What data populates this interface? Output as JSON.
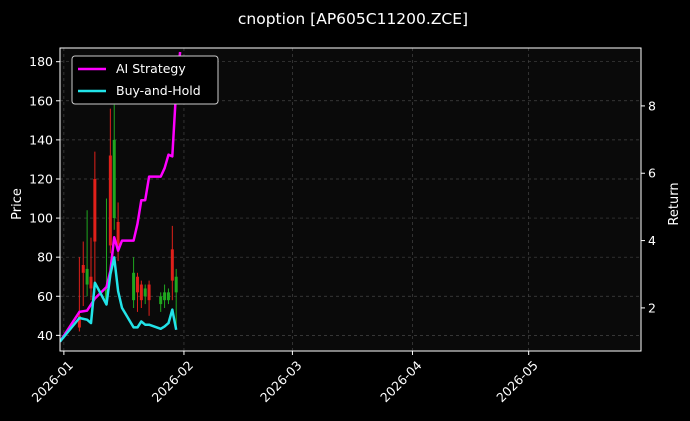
{
  "chart_data": {
    "type": "line",
    "title": "cnoption [AP605C11200.ZCE]",
    "ylabel_left": "Price",
    "ylabel_right": "Return",
    "x_range": [
      "2025-12-31",
      "2026-05-30"
    ],
    "x_ticks": [
      {
        "date": "2026-01-01",
        "label": "2026-01"
      },
      {
        "date": "2026-02-01",
        "label": "2026-02"
      },
      {
        "date": "2026-03-01",
        "label": "2026-03"
      },
      {
        "date": "2026-04-01",
        "label": "2026-04"
      },
      {
        "date": "2026-05-01",
        "label": "2026-05"
      }
    ],
    "left_ylim": [
      32,
      187
    ],
    "left_yticks": [
      40,
      60,
      80,
      100,
      120,
      140,
      160,
      180
    ],
    "right_ylim": [
      0.72,
      9.72
    ],
    "right_yticks": [
      2,
      4,
      6,
      8
    ],
    "grid": true,
    "legend_position": "top-left",
    "colors": {
      "background": "#000000",
      "plot_background": "#0a0a0a",
      "grid": "#444444",
      "up": "#1fa81f",
      "down": "#e0201a",
      "ai_strategy": "#ff00ff",
      "buy_and_hold": "#22e3e8"
    },
    "candles": [
      {
        "date": "2026-01-05",
        "open": 50,
        "close": 44,
        "high": 80,
        "low": 42
      },
      {
        "date": "2026-01-06",
        "open": 76,
        "close": 72,
        "high": 88,
        "low": 55
      },
      {
        "date": "2026-01-07",
        "open": 66,
        "close": 74,
        "high": 104,
        "low": 60
      },
      {
        "date": "2026-01-08",
        "open": 70,
        "close": 64,
        "high": 90,
        "low": 58
      },
      {
        "date": "2026-01-09",
        "open": 120,
        "close": 88,
        "high": 134,
        "low": 62
      },
      {
        "date": "2026-01-12",
        "open": 58,
        "close": 64,
        "high": 110,
        "low": 56
      },
      {
        "date": "2026-01-13",
        "open": 132,
        "close": 86,
        "high": 156,
        "low": 82
      },
      {
        "date": "2026-01-14",
        "open": 100,
        "close": 140,
        "high": 158,
        "low": 94
      },
      {
        "date": "2026-01-15",
        "open": 98,
        "close": 86,
        "high": 108,
        "low": 78
      },
      {
        "date": "2026-01-19",
        "open": 58,
        "close": 72,
        "high": 80,
        "low": 54
      },
      {
        "date": "2026-01-20",
        "open": 70,
        "close": 62,
        "high": 72,
        "low": 52
      },
      {
        "date": "2026-01-21",
        "open": 66,
        "close": 58,
        "high": 68,
        "low": 54
      },
      {
        "date": "2026-01-22",
        "open": 60,
        "close": 64,
        "high": 66,
        "low": 56
      },
      {
        "date": "2026-01-23",
        "open": 66,
        "close": 58,
        "high": 68,
        "low": 50
      },
      {
        "date": "2026-01-26",
        "open": 56,
        "close": 60,
        "high": 62,
        "low": 52
      },
      {
        "date": "2026-01-27",
        "open": 58,
        "close": 62,
        "high": 66,
        "low": 54
      },
      {
        "date": "2026-01-28",
        "open": 58,
        "close": 62,
        "high": 64,
        "low": 56
      },
      {
        "date": "2026-01-29",
        "open": 84,
        "close": 68,
        "high": 96,
        "low": 58
      },
      {
        "date": "2026-01-30",
        "open": 62,
        "close": 70,
        "high": 74,
        "low": 44
      }
    ],
    "series": [
      {
        "name": "AI Strategy",
        "color": "#ff00ff",
        "axis": "right",
        "points": [
          [
            "2025-12-31",
            1.0
          ],
          [
            "2026-01-05",
            1.88
          ],
          [
            "2026-01-07",
            1.92
          ],
          [
            "2026-01-09",
            2.28
          ],
          [
            "2026-01-12",
            2.62
          ],
          [
            "2026-01-13",
            3.1
          ],
          [
            "2026-01-14",
            4.1
          ],
          [
            "2026-01-15",
            3.7
          ],
          [
            "2026-01-16",
            4.0
          ],
          [
            "2026-01-19",
            4.0
          ],
          [
            "2026-01-20",
            4.5
          ],
          [
            "2026-01-21",
            5.2
          ],
          [
            "2026-01-22",
            5.2
          ],
          [
            "2026-01-23",
            5.9
          ],
          [
            "2026-01-26",
            5.9
          ],
          [
            "2026-01-27",
            6.15
          ],
          [
            "2026-01-28",
            6.55
          ],
          [
            "2026-01-29",
            6.5
          ],
          [
            "2026-01-30",
            8.5
          ],
          [
            "2026-01-31",
            9.6
          ]
        ]
      },
      {
        "name": "Buy-and-Hold",
        "color": "#22e3e8",
        "axis": "right",
        "points": [
          [
            "2025-12-31",
            1.0
          ],
          [
            "2026-01-05",
            1.7
          ],
          [
            "2026-01-07",
            1.65
          ],
          [
            "2026-01-08",
            1.55
          ],
          [
            "2026-01-09",
            2.75
          ],
          [
            "2026-01-12",
            2.1
          ],
          [
            "2026-01-13",
            3.0
          ],
          [
            "2026-01-14",
            3.5
          ],
          [
            "2026-01-15",
            2.5
          ],
          [
            "2026-01-16",
            2.0
          ],
          [
            "2026-01-19",
            1.42
          ],
          [
            "2026-01-20",
            1.42
          ],
          [
            "2026-01-21",
            1.6
          ],
          [
            "2026-01-22",
            1.5
          ],
          [
            "2026-01-23",
            1.5
          ],
          [
            "2026-01-26",
            1.38
          ],
          [
            "2026-01-27",
            1.45
          ],
          [
            "2026-01-28",
            1.55
          ],
          [
            "2026-01-29",
            1.95
          ],
          [
            "2026-01-30",
            1.35
          ]
        ]
      }
    ]
  }
}
